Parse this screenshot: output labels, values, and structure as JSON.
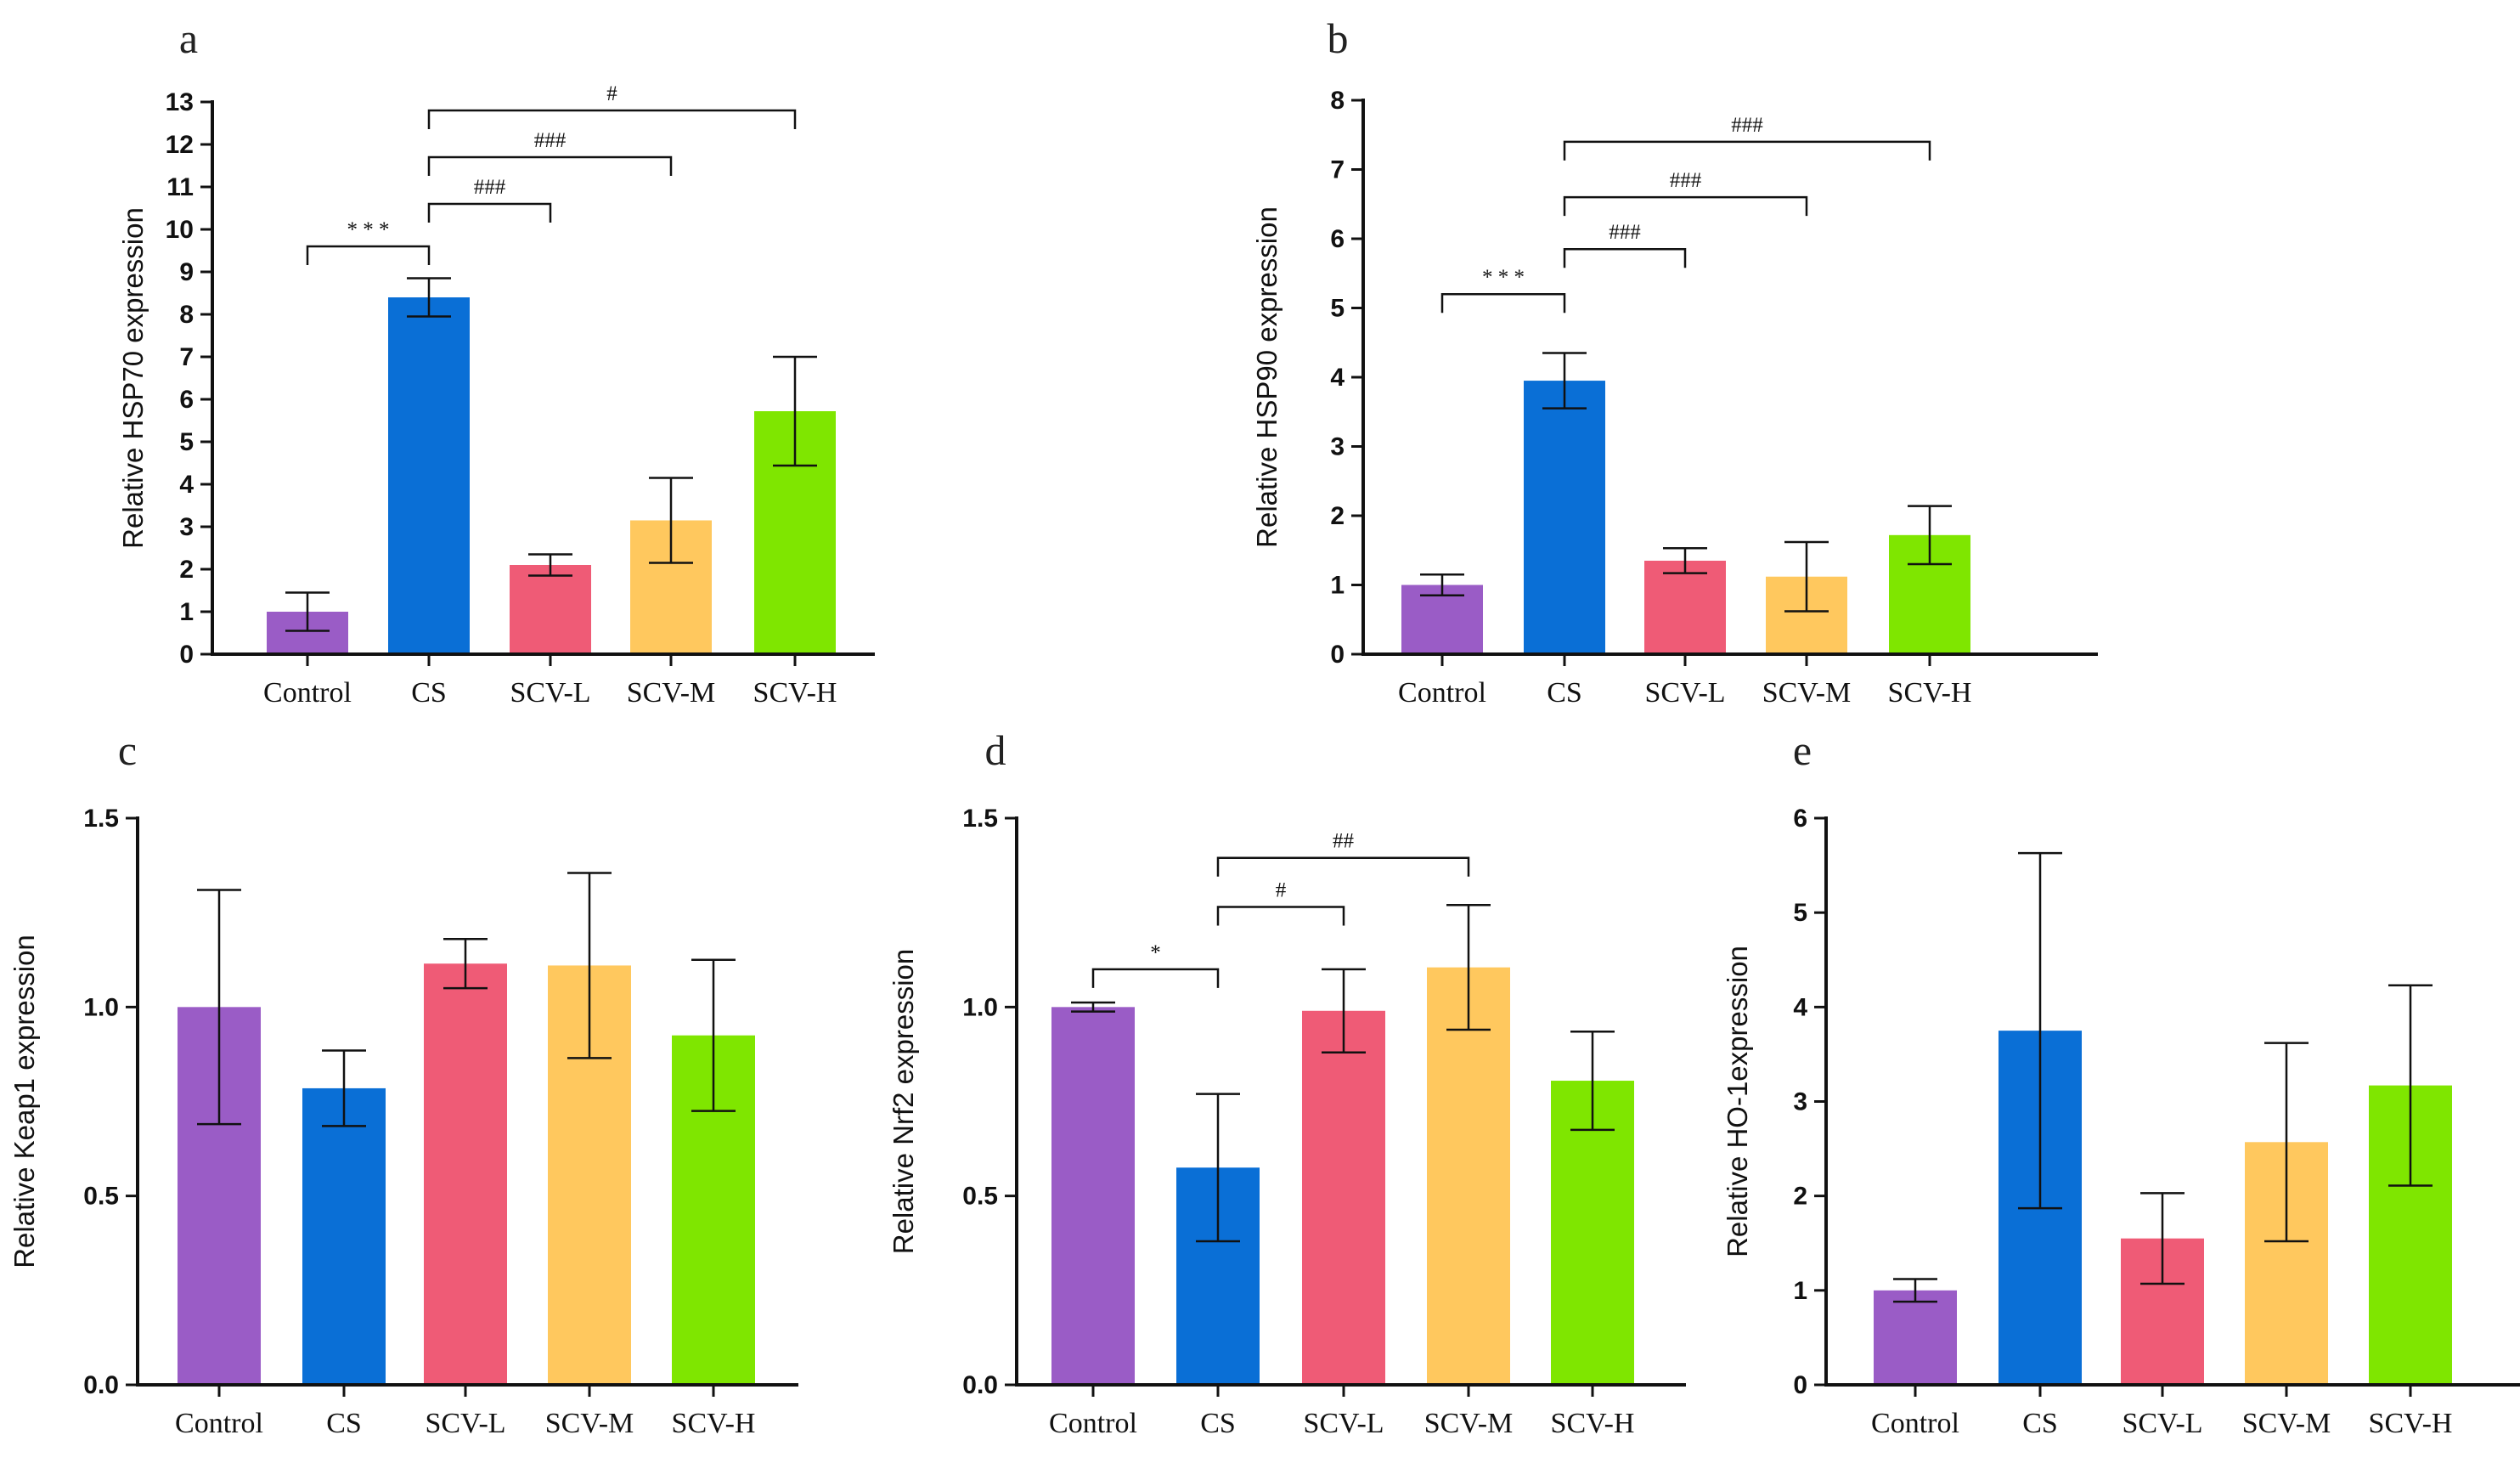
{
  "figure": {
    "colors": {
      "Control": "#9a5cc6",
      "CS": "#0a6fd6",
      "SCV-L": "#ef5b76",
      "SCV-M": "#ffc85e",
      "SCV-H": "#7fe600"
    }
  },
  "chart_data": [
    {
      "panel": "a",
      "type": "bar",
      "title": "",
      "xlabel": "",
      "ylabel": "Relative HSP70 expression",
      "ylim": [
        0,
        13
      ],
      "yticks": [
        0,
        1,
        2,
        3,
        4,
        5,
        6,
        7,
        8,
        9,
        10,
        11,
        12,
        13
      ],
      "ytick_labels": [
        "0",
        "1",
        "2",
        "3",
        "4",
        "5",
        "6",
        "7",
        "8",
        "9",
        "10",
        "11",
        "12",
        "13"
      ],
      "categories": [
        "Control",
        "CS",
        "SCV-L",
        "SCV-M",
        "SCV-H"
      ],
      "values": [
        1.0,
        8.4,
        2.1,
        3.15,
        5.72
      ],
      "errors": [
        0.45,
        0.45,
        0.25,
        1.0,
        1.28
      ],
      "significance": [
        {
          "from": "Control",
          "to": "CS",
          "label": "* * *",
          "y": 9.6
        },
        {
          "from": "CS",
          "to": "SCV-L",
          "label": "###",
          "y": 10.6
        },
        {
          "from": "CS",
          "to": "SCV-M",
          "label": "###",
          "y": 11.7
        },
        {
          "from": "CS",
          "to": "SCV-H",
          "label": "#",
          "y": 12.8
        }
      ]
    },
    {
      "panel": "b",
      "type": "bar",
      "title": "",
      "xlabel": "",
      "ylabel": "Relative HSP90 expression",
      "ylim": [
        0,
        8
      ],
      "yticks": [
        0,
        1,
        2,
        3,
        4,
        5,
        6,
        7,
        8
      ],
      "ytick_labels": [
        "0",
        "1",
        "2",
        "3",
        "4",
        "5",
        "6",
        "7",
        "8"
      ],
      "categories": [
        "Control",
        "CS",
        "SCV-L",
        "SCV-M",
        "SCV-H"
      ],
      "values": [
        1.0,
        3.95,
        1.35,
        1.12,
        1.72
      ],
      "errors": [
        0.15,
        0.4,
        0.18,
        0.5,
        0.42
      ],
      "significance": [
        {
          "from": "Control",
          "to": "CS",
          "label": "* * *",
          "y": 5.2
        },
        {
          "from": "CS",
          "to": "SCV-L",
          "label": "###",
          "y": 5.85
        },
        {
          "from": "CS",
          "to": "SCV-M",
          "label": "###",
          "y": 6.6
        },
        {
          "from": "CS",
          "to": "SCV-H",
          "label": "###",
          "y": 7.4
        }
      ]
    },
    {
      "panel": "c",
      "type": "bar",
      "title": "",
      "xlabel": "",
      "ylabel": "Relative Keap1 expression",
      "ylim": [
        0,
        1.5
      ],
      "yticks": [
        0,
        0.5,
        1.0,
        1.5
      ],
      "ytick_labels": [
        "0.0",
        "0.5",
        "1.0",
        "1.5"
      ],
      "categories": [
        "Control",
        "CS",
        "SCV-L",
        "SCV-M",
        "SCV-H"
      ],
      "values": [
        1.0,
        0.785,
        1.115,
        1.11,
        0.925
      ],
      "errors": [
        0.31,
        0.1,
        0.065,
        0.245,
        0.2
      ],
      "significance": []
    },
    {
      "panel": "d",
      "type": "bar",
      "title": "",
      "xlabel": "",
      "ylabel": "Relative Nrf2 expression",
      "ylim": [
        0,
        1.5
      ],
      "yticks": [
        0,
        0.5,
        1.0,
        1.5
      ],
      "ytick_labels": [
        "0.0",
        "0.5",
        "1.0",
        "1.5"
      ],
      "categories": [
        "Control",
        "CS",
        "SCV-L",
        "SCV-M",
        "SCV-H"
      ],
      "values": [
        1.0,
        0.575,
        0.99,
        1.105,
        0.805
      ],
      "errors": [
        0.012,
        0.195,
        0.11,
        0.165,
        0.13
      ],
      "significance": [
        {
          "from": "Control",
          "to": "CS",
          "label": "*",
          "y": 1.1
        },
        {
          "from": "CS",
          "to": "SCV-L",
          "label": "#",
          "y": 1.265
        },
        {
          "from": "CS",
          "to": "SCV-M",
          "label": "##",
          "y": 1.395
        }
      ]
    },
    {
      "panel": "e",
      "type": "bar",
      "title": "",
      "xlabel": "",
      "ylabel": "Relative HO-1expression",
      "ylim": [
        0,
        6
      ],
      "yticks": [
        0,
        1,
        2,
        3,
        4,
        5,
        6
      ],
      "ytick_labels": [
        "0",
        "1",
        "2",
        "3",
        "4",
        "5",
        "6"
      ],
      "categories": [
        "Control",
        "CS",
        "SCV-L",
        "SCV-M",
        "SCV-H"
      ],
      "values": [
        1.0,
        3.75,
        1.55,
        2.57,
        3.17
      ],
      "errors": [
        0.12,
        1.88,
        0.48,
        1.05,
        1.06
      ],
      "significance": []
    }
  ]
}
